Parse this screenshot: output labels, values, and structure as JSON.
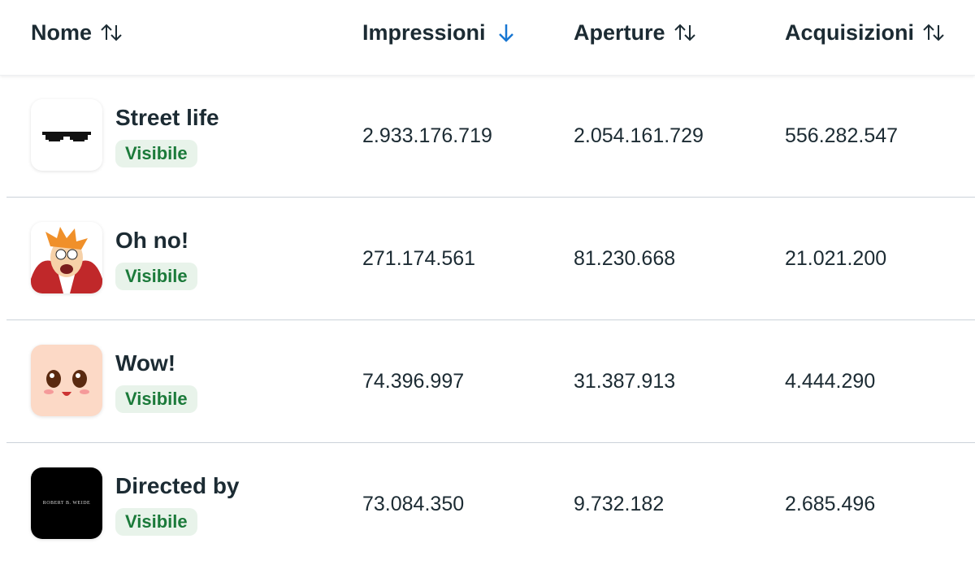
{
  "table": {
    "headers": [
      "Nome",
      "Impressioni",
      "Aperture",
      "Acquisizioni"
    ],
    "rows": [
      {
        "name": "Street life",
        "status": "Visibile",
        "impressions": "2.933.176.719",
        "opens": "2.054.161.729",
        "acquisitions": "556.282.547"
      },
      {
        "name": "Oh no!",
        "status": "Visibile",
        "impressions": "271.174.561",
        "opens": "81.230.668",
        "acquisitions": "21.021.200"
      },
      {
        "name": "Wow!",
        "status": "Visibile",
        "impressions": "74.396.997",
        "opens": "31.387.913",
        "acquisitions": "4.444.290"
      },
      {
        "name": "Directed by",
        "status": "Visibile",
        "impressions": "73.084.350",
        "opens": "9.732.182",
        "acquisitions": "2.685.496",
        "icon_text": "ROBERT B. WEIDE"
      }
    ]
  }
}
